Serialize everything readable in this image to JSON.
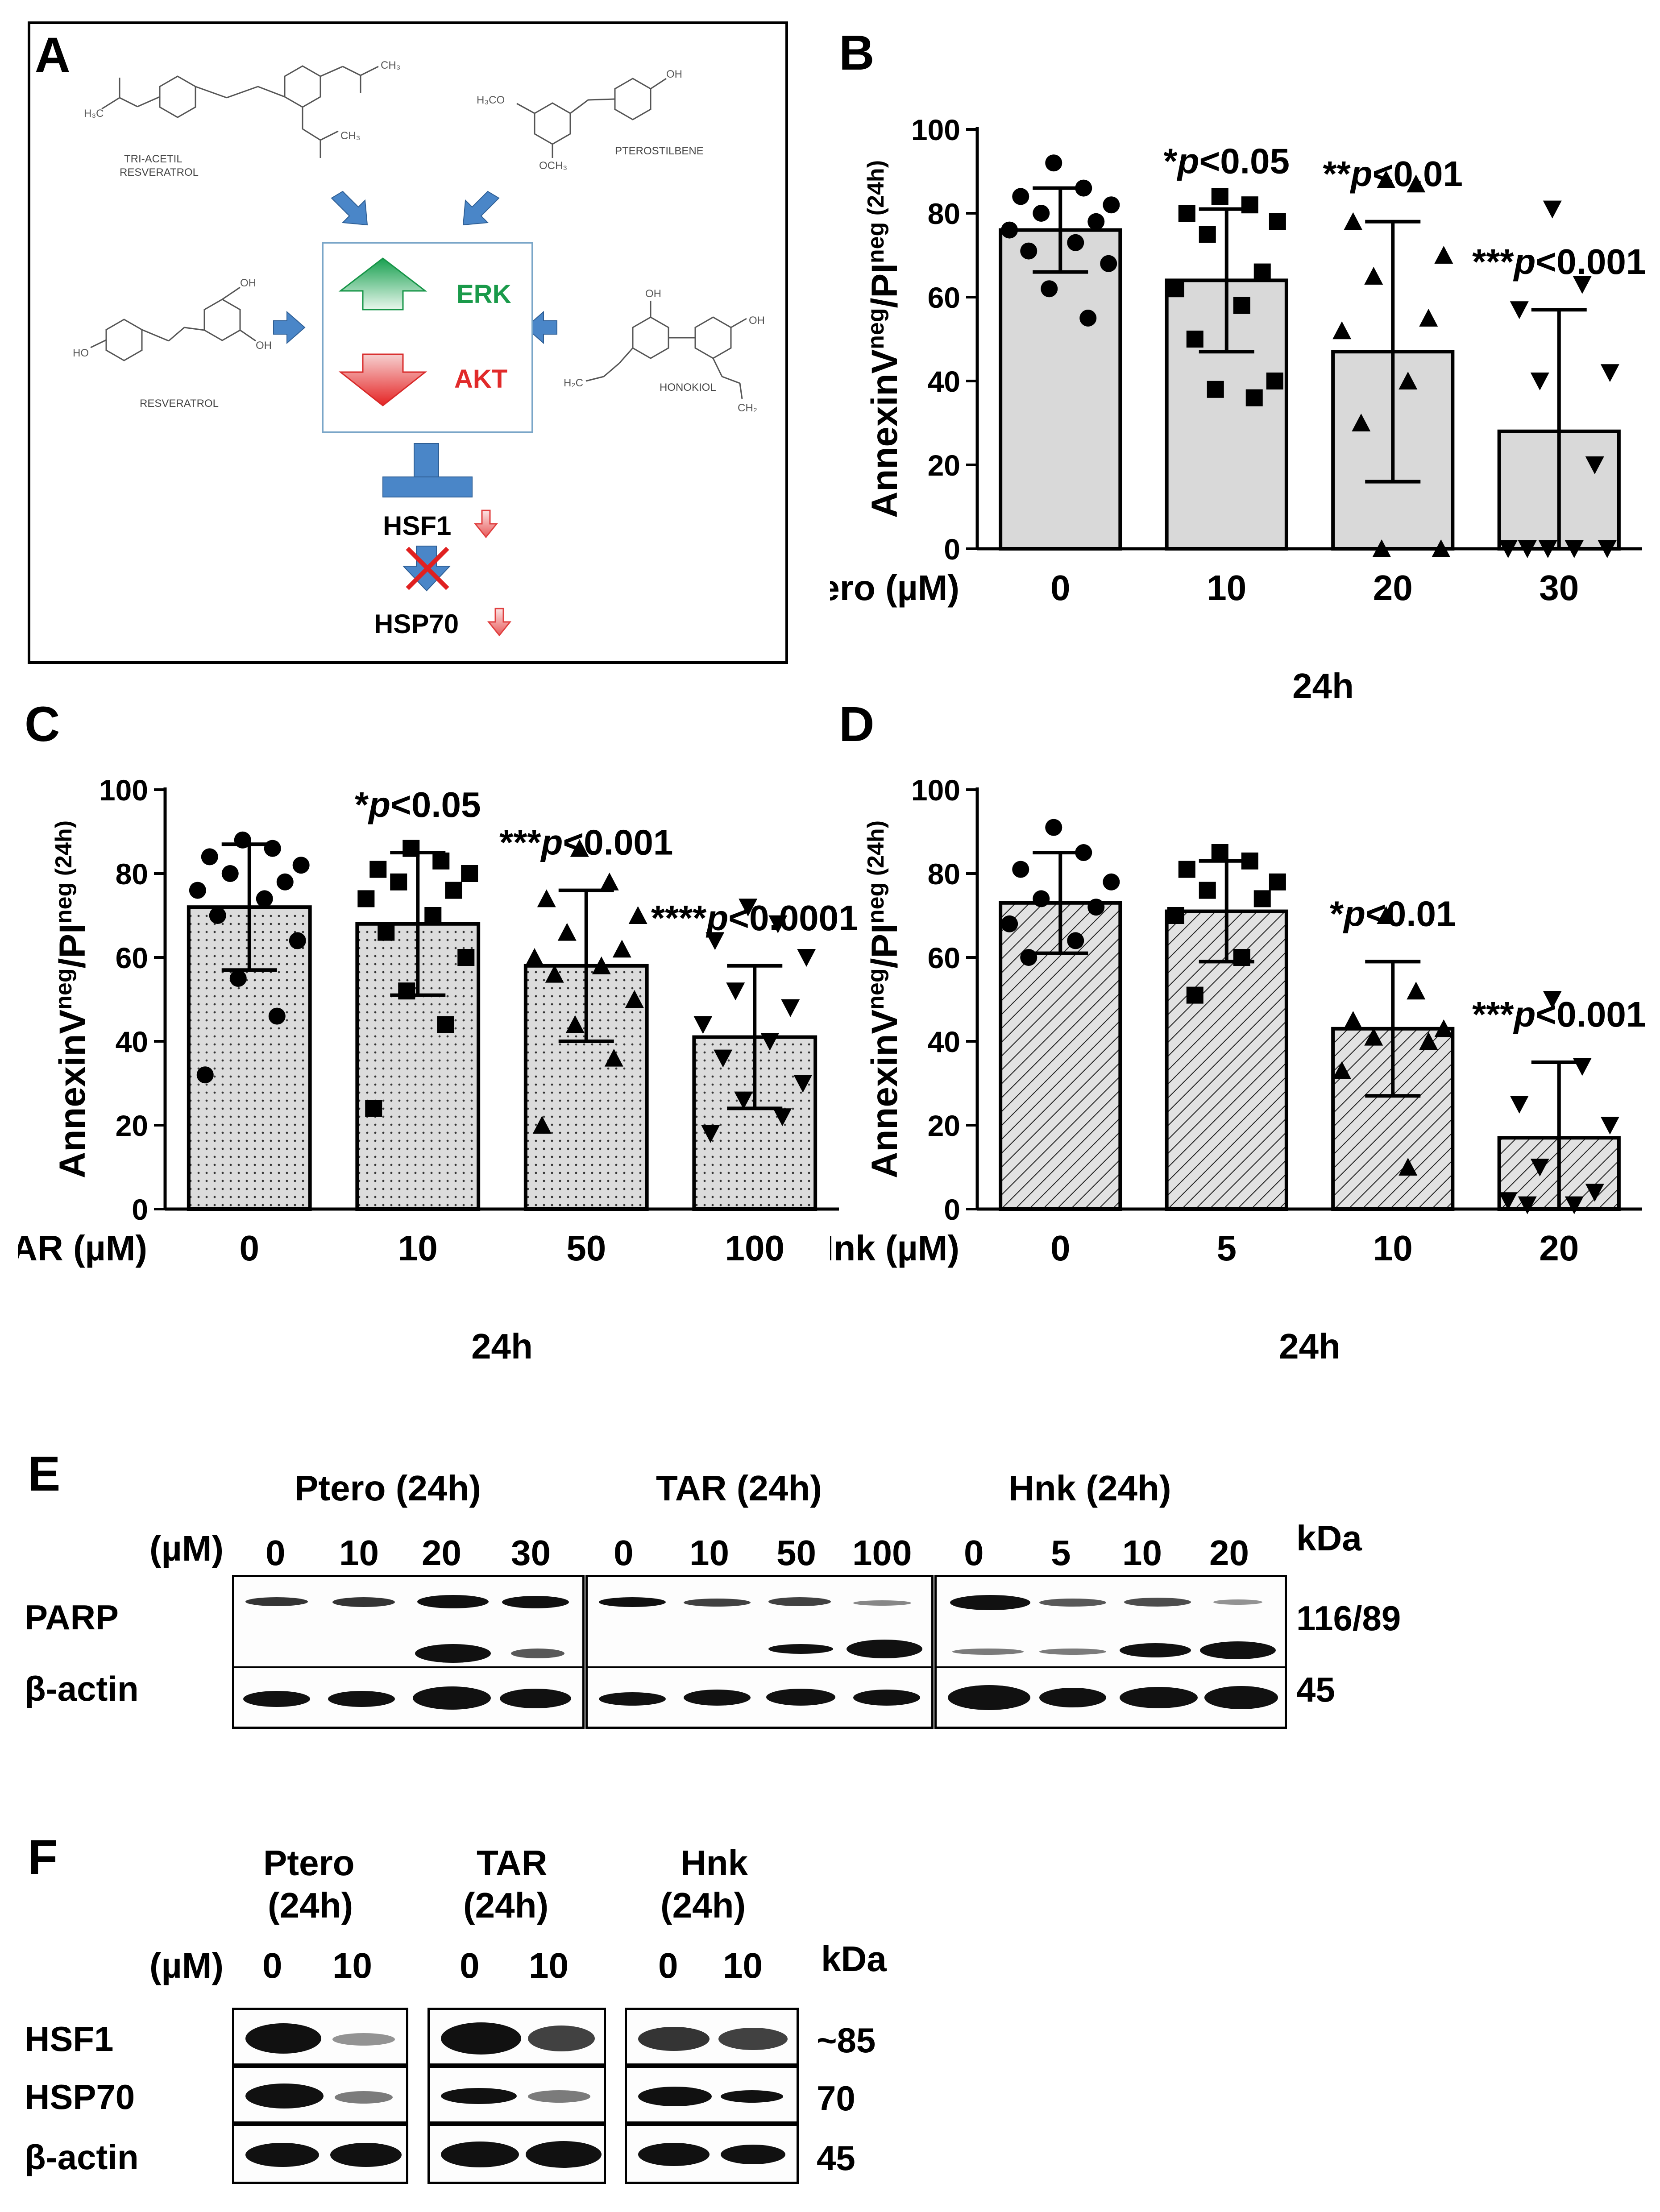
{
  "panelA": {
    "letter": "A",
    "molecules": {
      "tar": "TRI-ACETIL RESVERATROL",
      "ptero": "PTEROSTILBENE",
      "resv": "RESVERATROL",
      "hnk": "HONOKIOL"
    },
    "atoms": {
      "ch3": "CH₃",
      "h3co": "H₃CO",
      "och3": "OCH₃",
      "oh": "OH",
      "ho": "HO",
      "h2c": "H₂C",
      "ch2": "CH₂"
    },
    "erk": "ERK",
    "akt": "AKT",
    "hsf1": "HSF1",
    "hsp70": "HSP70",
    "colors": {
      "up": "#1a9a4a",
      "down": "#e12a2a",
      "blue": "#4a86c8"
    }
  },
  "chart_data": [
    {
      "panel": "B",
      "type": "bar",
      "ylabel_main": "AnnexinV",
      "ylabel_sup1": "neg",
      "ylabel_mid": "/PI",
      "ylabel_sup2": "neg (24h)",
      "xaxis_title": "Ptero (µM)",
      "xlabel": "24h",
      "categories": [
        "0",
        "10",
        "20",
        "30"
      ],
      "values": [
        76,
        64,
        47,
        28
      ],
      "sd": [
        10,
        17,
        31,
        29
      ],
      "ylim": [
        0,
        100
      ],
      "yticks": [
        "0",
        "20",
        "40",
        "60",
        "80",
        "100"
      ],
      "annotations": [
        "",
        "*p<0.05",
        "**p<0.01",
        "***p<0.001"
      ],
      "points": [
        [
          92,
          86,
          84,
          82,
          80,
          78,
          76,
          73,
          71,
          68,
          62,
          55
        ],
        [
          84,
          82,
          80,
          78,
          75,
          66,
          62,
          58,
          50,
          40,
          38,
          36
        ],
        [
          88,
          87,
          78,
          70,
          65,
          55,
          52,
          40,
          30,
          0,
          0
        ],
        [
          81,
          63,
          57,
          42,
          40,
          20,
          0,
          0,
          0,
          0,
          0
        ]
      ],
      "marker": "circle,square,triangle,invtriangle",
      "fill": "plain"
    },
    {
      "panel": "C",
      "type": "bar",
      "ylabel_main": "AnnexinV",
      "ylabel_sup1": "neg",
      "ylabel_mid": "/PI",
      "ylabel_sup2": "neg (24h)",
      "xaxis_title": "TAR (µM)",
      "xlabel": "24h",
      "categories": [
        "0",
        "10",
        "50",
        "100"
      ],
      "values": [
        72,
        68,
        58,
        41
      ],
      "sd": [
        15,
        17,
        18,
        17
      ],
      "ylim": [
        0,
        100
      ],
      "yticks": [
        "0",
        "20",
        "40",
        "60",
        "80",
        "100"
      ],
      "annotations": [
        "",
        "*p<0.05",
        "***p<0.001",
        "****p<0.0001"
      ],
      "points": [
        [
          88,
          86,
          84,
          82,
          80,
          78,
          76,
          74,
          70,
          64,
          55,
          46,
          32
        ],
        [
          86,
          83,
          81,
          80,
          78,
          76,
          74,
          70,
          66,
          60,
          52,
          44,
          24
        ],
        [
          86,
          78,
          74,
          70,
          66,
          62,
          60,
          58,
          56,
          50,
          44,
          36,
          20
        ],
        [
          72,
          68,
          64,
          60,
          52,
          48,
          44,
          40,
          36,
          30,
          26,
          22,
          18
        ]
      ],
      "marker": "circle,square,triangle,invtriangle",
      "fill": "dots"
    },
    {
      "panel": "D",
      "type": "bar",
      "ylabel_main": "AnnexinV",
      "ylabel_sup1": "neg",
      "ylabel_mid": "/PI",
      "ylabel_sup2": "neg (24h)",
      "xaxis_title": "Hnk (µM)",
      "xlabel": "24h",
      "categories": [
        "0",
        "5",
        "10",
        "20"
      ],
      "values": [
        73,
        71,
        43,
        17
      ],
      "sd": [
        12,
        12,
        16,
        18
      ],
      "ylim": [
        0,
        100
      ],
      "yticks": [
        "0",
        "20",
        "40",
        "60",
        "80",
        "100"
      ],
      "annotations": [
        "",
        "",
        "*p<0.01",
        "***p<0.001"
      ],
      "points": [
        [
          91,
          85,
          81,
          78,
          74,
          72,
          68,
          64,
          60
        ],
        [
          85,
          83,
          81,
          78,
          76,
          74,
          70,
          60,
          51
        ],
        [
          70,
          52,
          45,
          43,
          41,
          40,
          33,
          10
        ],
        [
          50,
          34,
          25,
          20,
          10,
          4,
          2,
          1,
          1
        ]
      ],
      "marker": "circle,square,triangle,invtriangle",
      "fill": "hatch"
    }
  ],
  "panelE": {
    "letter": "E",
    "groups": [
      "Ptero (24h)",
      "TAR (24h)",
      "Hnk (24h)"
    ],
    "unit": "(µM)",
    "doses": [
      [
        "0",
        "10",
        "20",
        "30"
      ],
      [
        "0",
        "10",
        "50",
        "100"
      ],
      [
        "0",
        "5",
        "10",
        "20"
      ]
    ],
    "kda": "kDa",
    "rows": [
      "PARP",
      "β-actin"
    ],
    "sizes": [
      "116/89",
      "45"
    ]
  },
  "panelF": {
    "letter": "F",
    "groups": [
      [
        "Ptero",
        "(24h)"
      ],
      [
        "TAR",
        "(24h)"
      ],
      [
        "Hnk",
        "(24h)"
      ]
    ],
    "unit": "(µM)",
    "doses": [
      "0",
      "10"
    ],
    "kda": "kDa",
    "rows": [
      "HSF1",
      "HSP70",
      "β-actin"
    ],
    "sizes": [
      "~85",
      "70",
      "45"
    ]
  }
}
